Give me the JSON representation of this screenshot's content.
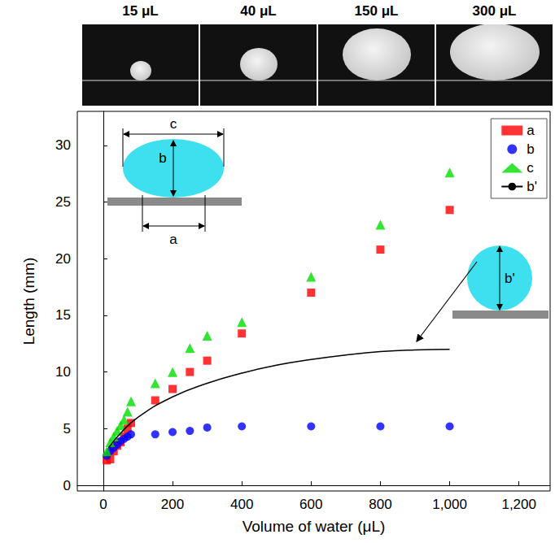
{
  "panels": [
    {
      "label": "15 μL"
    },
    {
      "label": "40 μL"
    },
    {
      "label": "150 μL"
    },
    {
      "label": "300 μL"
    }
  ],
  "chart_data": {
    "type": "scatter",
    "xlabel": "Volume of water (μL)",
    "ylabel": "Length (mm)",
    "xlim": [
      -75,
      1290
    ],
    "xticks": [
      0,
      200,
      400,
      600,
      800,
      1000,
      1200
    ],
    "ylim": [
      -0.5,
      33
    ],
    "yticks": [
      0,
      5,
      10,
      15,
      20,
      25,
      30
    ],
    "grid": false,
    "legend": "upper right",
    "series": [
      {
        "name": "a",
        "color": "#ff0000",
        "marker": "square",
        "type": "scatter",
        "x": [
          10,
          20,
          30,
          40,
          50,
          60,
          70,
          80,
          150,
          200,
          250,
          300,
          400,
          600,
          800,
          1000
        ],
        "values": [
          2.2,
          2.3,
          3.0,
          3.5,
          3.8,
          4.3,
          5.0,
          5.5,
          7.5,
          8.5,
          10.0,
          11.0,
          13.4,
          17.0,
          20.8,
          24.3
        ]
      },
      {
        "name": "b",
        "color": "#0000ff",
        "marker": "circle",
        "type": "scatter",
        "x": [
          10,
          20,
          30,
          40,
          50,
          60,
          70,
          80,
          150,
          200,
          250,
          300,
          400,
          600,
          800,
          1000
        ],
        "values": [
          2.6,
          3.0,
          3.3,
          3.6,
          3.9,
          4.1,
          4.3,
          4.5,
          4.5,
          4.7,
          4.8,
          5.1,
          5.2,
          5.2,
          5.2,
          5.2
        ]
      },
      {
        "name": "c",
        "color": "#00dd00",
        "marker": "triangle",
        "type": "scatter",
        "x": [
          10,
          20,
          30,
          40,
          50,
          60,
          70,
          80,
          150,
          200,
          250,
          300,
          400,
          600,
          800,
          1000
        ],
        "values": [
          3.0,
          3.8,
          4.3,
          4.8,
          5.3,
          5.8,
          6.5,
          7.4,
          9.0,
          10.0,
          12.1,
          13.2,
          14.4,
          18.4,
          23.0,
          27.6
        ]
      },
      {
        "name": "b'",
        "color": "#000000",
        "type": "line",
        "line_style": "solid",
        "x": [
          15,
          50,
          100,
          200,
          300,
          400,
          500,
          600,
          700,
          800,
          900,
          1000
        ],
        "values": [
          3.3,
          4.6,
          6.0,
          7.8,
          9.0,
          9.9,
          10.6,
          11.1,
          11.5,
          11.8,
          11.95,
          12.0
        ]
      }
    ]
  }
}
